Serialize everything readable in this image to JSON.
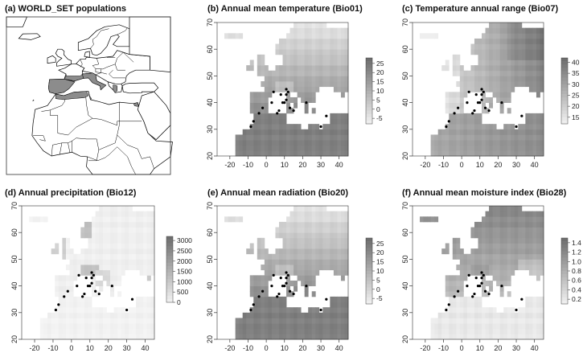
{
  "figure": {
    "panels": [
      {
        "id": "a",
        "type": "world-map",
        "title": "(a)  WORLD_SET populations",
        "highlight_color": "#8c8c8c",
        "land_color": "#ffffff",
        "border_color": "#000000"
      },
      {
        "id": "b",
        "type": "raster-map",
        "title": "(b)  Annual mean temperature (Bio01)",
        "colorbar": {
          "ticks": [
            "25",
            "20",
            "15",
            "10",
            "5",
            "0",
            "-5"
          ],
          "min": -8,
          "max": 28
        },
        "shade": "warm-south"
      },
      {
        "id": "c",
        "type": "raster-map",
        "title": "(c)  Temperature annual range (Bio07)",
        "colorbar": {
          "ticks": [
            "40",
            "35",
            "30",
            "25",
            "20",
            "15"
          ],
          "min": 12,
          "max": 42
        },
        "shade": "continental-east"
      },
      {
        "id": "d",
        "type": "raster-map",
        "title": "(d)  Annual precipitation (Bio12)",
        "colorbar": {
          "ticks": [
            "3000",
            "2500",
            "2000",
            "1500",
            "1000",
            "500",
            "0"
          ],
          "min": 0,
          "max": 3200
        },
        "shade": "wet-mountains"
      },
      {
        "id": "e",
        "type": "raster-map",
        "title": "(e)  Annual mean radiation (Bio20)",
        "colorbar": {
          "ticks": [
            "25",
            "20",
            "15",
            "10",
            "5",
            "0",
            "-5"
          ],
          "min": -8,
          "max": 28
        },
        "shade": "warm-south"
      },
      {
        "id": "f",
        "type": "raster-map",
        "title": "(f)  Annual mean moisture index (Bio28)",
        "colorbar": {
          "ticks": [
            "1.4",
            "1.2",
            "1.0",
            "0.8",
            "0.6",
            "0.4",
            "0.2"
          ],
          "min": 0.1,
          "max": 1.5
        },
        "shade": "moist-north"
      }
    ],
    "x_ticks": [
      "-20",
      "-10",
      "0",
      "10",
      "20",
      "30",
      "40"
    ],
    "y_ticks": [
      "20",
      "30",
      "40",
      "50",
      "60",
      "70"
    ],
    "x_range": [
      -27,
      45
    ],
    "y_range": [
      20,
      70
    ]
  },
  "chart_data": {
    "type": "scatter",
    "series": [
      {
        "x": [
          -8.5,
          -7,
          -4,
          -2,
          3,
          4,
          6,
          7,
          8,
          9,
          10,
          11,
          11,
          11,
          12,
          13,
          15,
          22,
          30,
          33
        ],
        "y": [
          31,
          33,
          36,
          38,
          40,
          44,
          36,
          37,
          43,
          40,
          40,
          41,
          43,
          45,
          44,
          38,
          37,
          40,
          31,
          35
        ]
      }
    ]
  }
}
